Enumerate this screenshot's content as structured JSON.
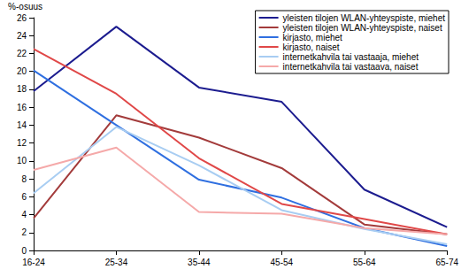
{
  "chart_data": {
    "type": "line",
    "y_label": "%-osuus",
    "categories": [
      "16-24",
      "25-34",
      "35-44",
      "45-54",
      "55-64",
      "65-74"
    ],
    "series": [
      {
        "name": "yleisten tilojen WLAN-yhteyspiste, miehet",
        "color": "#1c1c8f",
        "values": [
          17.8,
          25.0,
          18.2,
          16.6,
          6.8,
          2.6
        ]
      },
      {
        "name": "yleisten tilojen WLAN-yhteyspiste, naiset",
        "color": "#a33b3b",
        "values": [
          3.6,
          15.1,
          12.6,
          9.2,
          2.9,
          1.8
        ]
      },
      {
        "name": "kirjasto, miehet",
        "color": "#2f6fe0",
        "values": [
          20.1,
          14.0,
          7.9,
          5.9,
          2.5,
          0.5
        ]
      },
      {
        "name": "kirjasto, naiset",
        "color": "#e04848",
        "values": [
          22.5,
          17.5,
          10.3,
          5.2,
          3.5,
          1.8
        ]
      },
      {
        "name": "internetkahvila tai vastaaja, miehet",
        "color": "#a8cdf2",
        "values": [
          6.4,
          13.8,
          9.5,
          4.5,
          2.4,
          0.7
        ]
      },
      {
        "name": "internetkahvila tai vastaava, naiset",
        "color": "#f5a9a9",
        "values": [
          9.0,
          11.5,
          4.3,
          4.1,
          2.5,
          1.8
        ]
      }
    ],
    "ylim": [
      0,
      26
    ],
    "yticks": [
      0,
      2,
      4,
      6,
      8,
      10,
      12,
      14,
      16,
      18,
      20,
      22,
      24,
      26
    ],
    "grid": false,
    "legend": "upper right",
    "marker": "none",
    "line_style": "solid"
  }
}
